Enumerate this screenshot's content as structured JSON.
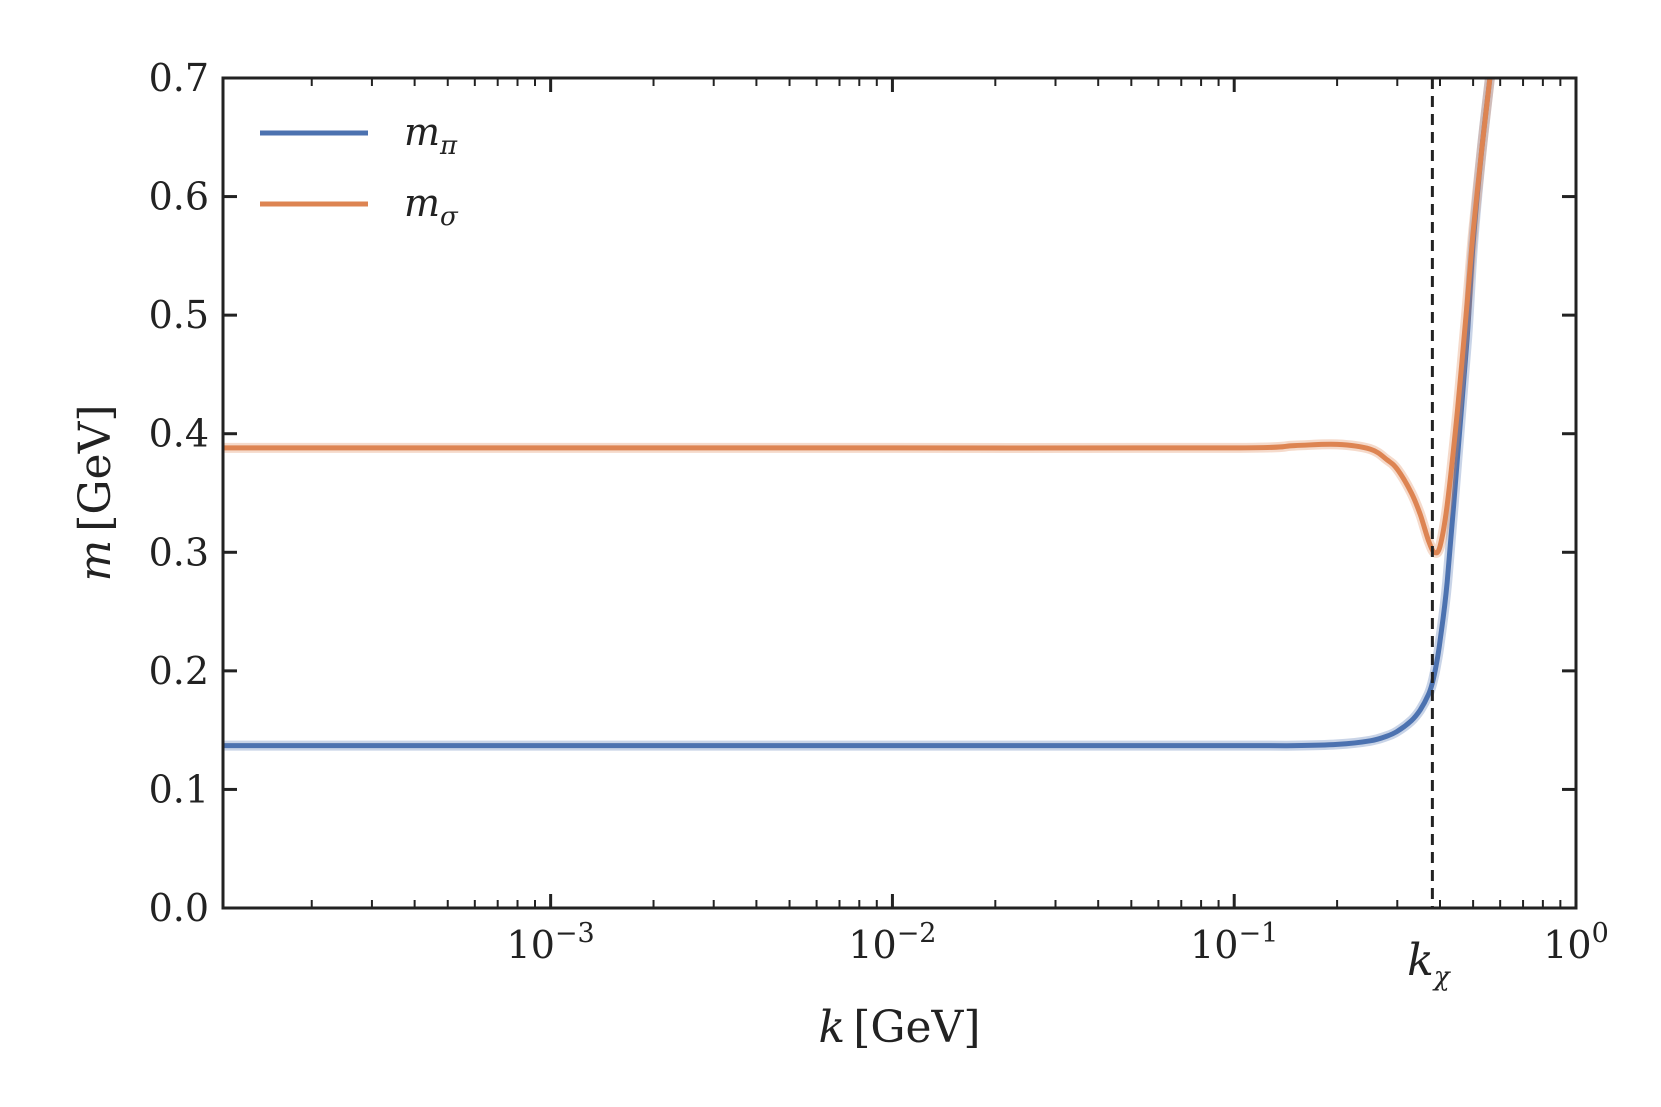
{
  "chart_data": {
    "type": "line",
    "x_scale": "log",
    "xlim": [
      0.00011,
      1.0
    ],
    "ylim": [
      0.0,
      0.7
    ],
    "xlabel": {
      "var": "k",
      "unit": "[GeV]"
    },
    "ylabel": {
      "var": "m",
      "unit": "[GeV]"
    },
    "x_ticks": [
      {
        "value": 0.001,
        "base": "10",
        "exp": "−3"
      },
      {
        "value": 0.01,
        "base": "10",
        "exp": "−2"
      },
      {
        "value": 0.1,
        "base": "10",
        "exp": "−1"
      },
      {
        "value": 1.0,
        "base": "10",
        "exp": "0"
      }
    ],
    "y_ticks": [
      {
        "value": 0.0,
        "label": "0.0"
      },
      {
        "value": 0.1,
        "label": "0.1"
      },
      {
        "value": 0.2,
        "label": "0.2"
      },
      {
        "value": 0.3,
        "label": "0.3"
      },
      {
        "value": 0.4,
        "label": "0.4"
      },
      {
        "value": 0.5,
        "label": "0.5"
      },
      {
        "value": 0.6,
        "label": "0.6"
      },
      {
        "value": 0.7,
        "label": "0.7"
      }
    ],
    "vline": {
      "x": 0.38,
      "style": "dashed",
      "label_var": "k",
      "label_sub": "χ"
    },
    "grid": false,
    "legend": "top-left",
    "series": [
      {
        "name_var": "m",
        "name_sub": "π",
        "color": "#4c72b0",
        "x": [
          0.00011,
          0.001,
          0.01,
          0.1,
          0.15,
          0.2,
          0.25,
          0.28,
          0.3,
          0.33,
          0.35,
          0.37,
          0.38,
          0.39,
          0.4,
          0.42,
          0.45,
          0.48,
          0.5,
          0.53,
          0.56
        ],
        "y": [
          0.137,
          0.137,
          0.137,
          0.137,
          0.137,
          0.138,
          0.141,
          0.145,
          0.149,
          0.158,
          0.167,
          0.18,
          0.19,
          0.205,
          0.225,
          0.275,
          0.38,
          0.48,
          0.56,
          0.64,
          0.7
        ]
      },
      {
        "name_var": "m",
        "name_sub": "σ",
        "color": "#dd8452",
        "x": [
          0.00011,
          0.001,
          0.01,
          0.1,
          0.15,
          0.2,
          0.25,
          0.28,
          0.3,
          0.33,
          0.35,
          0.37,
          0.385,
          0.4,
          0.42,
          0.45,
          0.48,
          0.5,
          0.53,
          0.56
        ],
        "y": [
          0.388,
          0.388,
          0.388,
          0.388,
          0.39,
          0.391,
          0.387,
          0.378,
          0.37,
          0.35,
          0.332,
          0.31,
          0.3,
          0.305,
          0.34,
          0.42,
          0.51,
          0.57,
          0.64,
          0.7
        ]
      }
    ]
  }
}
